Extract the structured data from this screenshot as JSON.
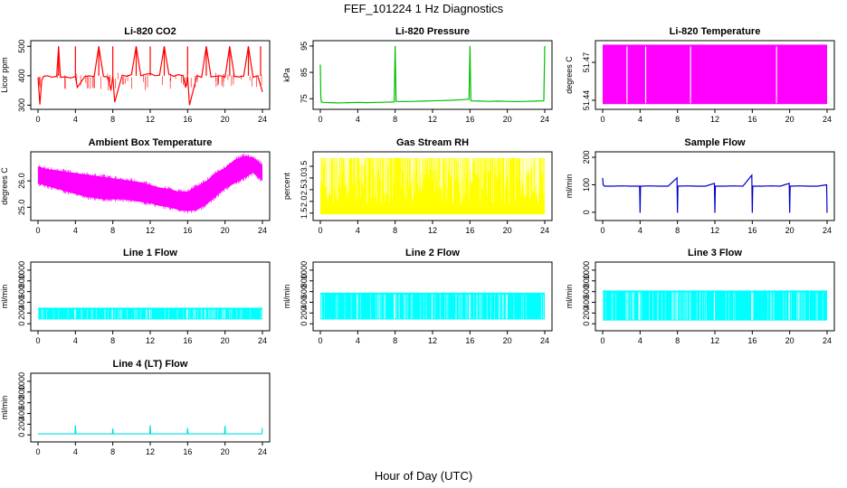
{
  "figure": {
    "title": "FEF_101224  1 Hz Diagnostics",
    "xlabel": "Hour of Day (UTC)"
  },
  "chart_data": [
    {
      "type": "line",
      "title": "Li-820 CO2",
      "ylabel": "Licor ppm",
      "color": "#ff0000",
      "xlim": [
        0,
        24
      ],
      "ylim": [
        295,
        510
      ],
      "xticks": [
        0,
        4,
        8,
        12,
        16,
        20,
        24
      ],
      "yticks": [
        300,
        400,
        500
      ],
      "series": [
        {
          "x": [
            0,
            0.2,
            0.4,
            0.6,
            1.0,
            1.5,
            2.0,
            2.2,
            2.4,
            3.0,
            3.5,
            4.0,
            4.2,
            5.0,
            5.5,
            6.0,
            6.5,
            7.0,
            7.5,
            7.8,
            8.0,
            8.2,
            9.0,
            9.5,
            10.0,
            10.5,
            11.0,
            11.5,
            12.0,
            12.5,
            13.0,
            13.5,
            14.0,
            14.5,
            15.0,
            15.5,
            15.8,
            16.0,
            16.2,
            17.0,
            17.5,
            18.0,
            18.5,
            19.0,
            19.5,
            20.0,
            20.5,
            21.0,
            21.5,
            22.0,
            22.5,
            23.0,
            23.5,
            24.0
          ],
          "y": [
            395,
            302,
            385,
            398,
            400,
            395,
            398,
            500,
            395,
            396,
            392,
            398,
            360,
            397,
            400,
            396,
            500,
            398,
            395,
            350,
            400,
            310,
            402,
            398,
            404,
            500,
            400,
            405,
            408,
            400,
            402,
            500,
            405,
            398,
            404,
            400,
            360,
            398,
            300,
            400,
            395,
            500,
            396,
            398,
            400,
            395,
            500,
            398,
            396,
            399,
            500,
            395,
            400,
            345
          ]
        }
      ],
      "spikes_to": 500,
      "spike_x": [
        2.2,
        4.0,
        6.5,
        8.0,
        10.5,
        12.0,
        13.5,
        16.0,
        18.0,
        20.5,
        22.5,
        23.8
      ]
    },
    {
      "type": "line",
      "title": "Li-820 Pressure",
      "ylabel": "kPa",
      "color": "#00c000",
      "xlim": [
        0,
        24
      ],
      "ylim": [
        72,
        96
      ],
      "xticks": [
        0,
        4,
        8,
        12,
        16,
        20,
        24
      ],
      "yticks": [
        75,
        85,
        95
      ],
      "series": [
        {
          "x": [
            0,
            0.05,
            0.1,
            0.3,
            1,
            2,
            3,
            4,
            5,
            6,
            7,
            7.9,
            8.0,
            8.1,
            9,
            10,
            11,
            12,
            13,
            14,
            15,
            15.9,
            16.0,
            16.1,
            17,
            18,
            19,
            20,
            21,
            22,
            23,
            23.9,
            24.0
          ],
          "y": [
            88,
            76,
            73.8,
            73.6,
            73.5,
            73.4,
            73.5,
            73.6,
            73.5,
            73.6,
            73.7,
            73.8,
            95,
            74,
            73.9,
            74,
            74.1,
            74.2,
            74.3,
            74.4,
            74.6,
            74.8,
            95,
            74.2,
            74.1,
            74.0,
            74.1,
            74.0,
            73.9,
            74.0,
            74.1,
            74.2,
            95
          ]
        }
      ]
    },
    {
      "type": "area",
      "title": "Li-820 Temperature",
      "ylabel": "degrees C",
      "color": "#ff00ff",
      "xlim": [
        0,
        24
      ],
      "ylim": [
        51.435,
        51.485
      ],
      "xticks": [
        0,
        4,
        8,
        12,
        16,
        20,
        24
      ],
      "yticks": [
        51.44,
        51.47
      ],
      "fill_range": [
        51.437,
        51.484
      ],
      "gaps_x": [
        2.6,
        4.6,
        9.4,
        18.6
      ]
    },
    {
      "type": "line",
      "title": "Ambient Box Temperature",
      "ylabel": "degrees C",
      "color": "#ff00ff",
      "xlim": [
        0,
        24
      ],
      "ylim": [
        24.6,
        27.0
      ],
      "xticks": [
        0,
        4,
        8,
        12,
        16,
        20,
        24
      ],
      "yticks": [
        25.0,
        26.0
      ],
      "band_x": [
        0,
        1,
        2,
        3,
        4,
        5,
        6,
        7,
        8,
        9,
        10,
        11,
        12,
        13,
        14,
        15,
        16,
        17,
        18,
        19,
        20,
        21,
        22,
        23,
        24
      ],
      "band_hi": [
        26.55,
        26.45,
        26.4,
        26.35,
        26.3,
        26.25,
        26.2,
        26.15,
        26.1,
        26.05,
        26.0,
        25.95,
        25.85,
        25.75,
        25.7,
        25.6,
        25.6,
        25.8,
        26.0,
        26.3,
        26.5,
        26.8,
        26.95,
        26.9,
        26.6
      ],
      "band_lo": [
        25.9,
        25.8,
        25.7,
        25.6,
        25.5,
        25.4,
        25.35,
        25.3,
        25.3,
        25.3,
        25.25,
        25.2,
        25.15,
        25.05,
        25.0,
        24.9,
        24.85,
        24.9,
        25.1,
        25.4,
        25.7,
        25.9,
        26.1,
        26.3,
        26.0
      ]
    },
    {
      "type": "area",
      "title": "Gas Stream RH",
      "ylabel": "percent",
      "color": "#ffff00",
      "xlim": [
        0,
        24
      ],
      "ylim": [
        1.3,
        4.0
      ],
      "xticks": [
        0,
        4,
        8,
        12,
        16,
        20,
        24
      ],
      "yticks": [
        1.5,
        2.0,
        2.5,
        3.0,
        3.5
      ],
      "fill_range": [
        1.45,
        3.85
      ]
    },
    {
      "type": "line",
      "title": "Sample Flow",
      "ylabel": "ml/min",
      "color": "#0000cc",
      "xlim": [
        0,
        24
      ],
      "ylim": [
        -20,
        210
      ],
      "xticks": [
        0,
        4,
        8,
        12,
        16,
        20,
        24
      ],
      "yticks": [
        0,
        100,
        200
      ],
      "series": [
        {
          "x": [
            0,
            0.05,
            0.2,
            1,
            2,
            3,
            3.95,
            4.0,
            4.05,
            5,
            6,
            7,
            7.95,
            8.0,
            8.05,
            9,
            10,
            11,
            11.95,
            12.0,
            12.05,
            13,
            14,
            15,
            15.95,
            16.0,
            16.05,
            17,
            18,
            19,
            19.95,
            20.0,
            20.05,
            21,
            22,
            23,
            23.95,
            24.0
          ],
          "y": [
            125,
            100,
            95,
            95,
            96,
            95,
            95,
            -2,
            95,
            96,
            95,
            95,
            125,
            -2,
            95,
            96,
            95,
            95,
            105,
            -2,
            95,
            95,
            96,
            95,
            135,
            -2,
            95,
            95,
            96,
            95,
            105,
            -2,
            95,
            96,
            95,
            95,
            100,
            -2
          ]
        }
      ]
    },
    {
      "type": "area",
      "title": "Line 1 Flow",
      "ylabel": "ml/min",
      "color": "#00ffff",
      "xlim": [
        0,
        24
      ],
      "ylim": [
        -80,
        1100
      ],
      "xticks": [
        0,
        4,
        8,
        12,
        16,
        20,
        24
      ],
      "yticks": [
        0,
        200,
        400,
        600,
        800,
        1000
      ],
      "fill_range": [
        80,
        300
      ],
      "gaps_x": [
        3.95,
        7.95,
        11.95,
        15.95,
        19.95
      ]
    },
    {
      "type": "area",
      "title": "Line 2 Flow",
      "ylabel": "ml/min",
      "color": "#00ffff",
      "xlim": [
        0,
        24
      ],
      "ylim": [
        -80,
        1100
      ],
      "xticks": [
        0,
        4,
        8,
        12,
        16,
        20,
        24
      ],
      "yticks": [
        0,
        200,
        400,
        600,
        800,
        1000
      ],
      "fill_range": [
        80,
        580
      ],
      "gaps_x": [
        3.95,
        7.95,
        11.95,
        15.95,
        19.95
      ]
    },
    {
      "type": "area",
      "title": "Line 3 Flow",
      "ylabel": "ml/min",
      "color": "#00ffff",
      "xlim": [
        0,
        24
      ],
      "ylim": [
        -80,
        1100
      ],
      "xticks": [
        0,
        4,
        8,
        12,
        16,
        20,
        24
      ],
      "yticks": [
        0,
        200,
        400,
        600,
        800,
        1000
      ],
      "fill_range": [
        60,
        620
      ],
      "gaps_x": [
        3.95,
        7.95,
        11.95,
        15.95,
        19.95
      ]
    },
    {
      "type": "line",
      "title": "Line 4 (LT) Flow",
      "ylabel": "ml/min",
      "color": "#00e0e0",
      "xlim": [
        0,
        24
      ],
      "ylim": [
        -80,
        1100
      ],
      "xticks": [
        0,
        4,
        8,
        12,
        16,
        20,
        24
      ],
      "yticks": [
        0,
        200,
        400,
        600,
        800,
        1000
      ],
      "series": [
        {
          "x": [
            0,
            3.95,
            4.0,
            4.05,
            7.95,
            8.0,
            8.05,
            11.95,
            12.0,
            12.05,
            15.95,
            16.0,
            16.05,
            19.95,
            20.0,
            20.05,
            23.95,
            24.0
          ],
          "y": [
            20,
            20,
            180,
            20,
            20,
            120,
            20,
            20,
            180,
            20,
            20,
            130,
            20,
            20,
            170,
            20,
            20,
            130
          ]
        }
      ]
    }
  ]
}
